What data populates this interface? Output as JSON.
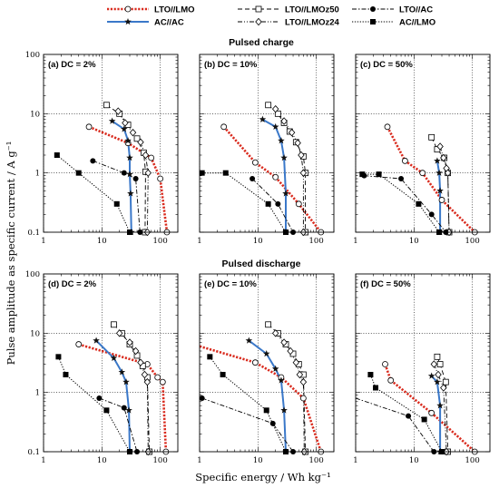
{
  "colors": {
    "LTO//LMO": "#d92b1e",
    "AC//AC": "#3a78c9",
    "black": "#000000"
  },
  "shared": {
    "xlabel": "Specific energy / Wh kg⁻¹",
    "ylabel": "Pulse amplitude as specific current / A g⁻¹",
    "x_ticks": [
      "1",
      "10",
      "100"
    ],
    "y_ticks": [
      "0.1",
      "1",
      "10",
      "100"
    ],
    "row_titles": [
      "Pulsed charge",
      "Pulsed discharge"
    ]
  },
  "legend": [
    {
      "label": "LTO//LMO",
      "line": "dotted-thick",
      "marker": "circle-open",
      "color": "#d92b1e"
    },
    {
      "label": "LTO//LMOz50",
      "line": "dashed",
      "marker": "square-open",
      "color": "#000000"
    },
    {
      "label": "LTO//AC",
      "line": "dashdot",
      "marker": "circle-filled",
      "color": "#000000"
    },
    {
      "label": "AC//AC",
      "line": "solid",
      "marker": "star",
      "color": "#3a78c9"
    },
    {
      "label": "LTO//LMOz24",
      "line": "dashdotdot",
      "marker": "diamond-open",
      "color": "#000000"
    },
    {
      "label": "AC//LMO",
      "line": "dotted",
      "marker": "square-filled",
      "color": "#000000"
    }
  ],
  "chart_data": [
    {
      "type": "line",
      "label": "(a) DC = 2%",
      "xscale": "log",
      "yscale": "log",
      "xlim": [
        1,
        200
      ],
      "ylim": [
        0.1,
        100
      ],
      "series": [
        {
          "name": "LTO//LMO",
          "points": [
            [
              6,
              6
            ],
            [
              28,
              3.2
            ],
            [
              70,
              1.8
            ],
            [
              100,
              0.8
            ],
            [
              130,
              0.1
            ]
          ]
        },
        {
          "name": "LTO//LMOz50",
          "points": [
            [
              12,
              14
            ],
            [
              20,
              10
            ],
            [
              28,
              6.5
            ],
            [
              40,
              3.8
            ],
            [
              52,
              2.2
            ],
            [
              56,
              1.05
            ],
            [
              55,
              0.1
            ]
          ]
        },
        {
          "name": "LTO//LMOz24",
          "points": [
            [
              19,
              11
            ],
            [
              25,
              7
            ],
            [
              34,
              4.8
            ],
            [
              46,
              3.3
            ],
            [
              56,
              2
            ],
            [
              62,
              1
            ],
            [
              60,
              0.1
            ]
          ]
        },
        {
          "name": "AC//AC",
          "points": [
            [
              15,
              7.5
            ],
            [
              24,
              5.5
            ],
            [
              28,
              3.5
            ],
            [
              30,
              1.8
            ],
            [
              30,
              0.95
            ],
            [
              31,
              0.45
            ],
            [
              32,
              0.1
            ]
          ]
        },
        {
          "name": "LTO//AC",
          "points": [
            [
              7,
              1.6
            ],
            [
              24,
              1
            ],
            [
              38,
              0.8
            ],
            [
              45,
              0.1
            ]
          ]
        },
        {
          "name": "AC//LMO",
          "points": [
            [
              1.7,
              2
            ],
            [
              4,
              1
            ],
            [
              18,
              0.3
            ],
            [
              30,
              0.1
            ]
          ]
        }
      ]
    },
    {
      "type": "line",
      "label": "(b) DC = 10%",
      "xscale": "log",
      "yscale": "log",
      "xlim": [
        1,
        200
      ],
      "ylim": [
        0.1,
        100
      ],
      "series": [
        {
          "name": "LTO//LMO",
          "points": [
            [
              2.6,
              6
            ],
            [
              9,
              1.5
            ],
            [
              20,
              0.85
            ],
            [
              50,
              0.3
            ],
            [
              120,
              0.1
            ]
          ]
        },
        {
          "name": "LTO//LMOz50",
          "points": [
            [
              15,
              14
            ],
            [
              22,
              10
            ],
            [
              28,
              7
            ],
            [
              35,
              5
            ],
            [
              45,
              3.3
            ],
            [
              60,
              1.9
            ],
            [
              65,
              1
            ],
            [
              65,
              0.1
            ]
          ]
        },
        {
          "name": "LTO//LMOz24",
          "points": [
            [
              20,
              12
            ],
            [
              28,
              7.5
            ],
            [
              38,
              4.8
            ],
            [
              48,
              3.2
            ],
            [
              55,
              2
            ],
            [
              60,
              1
            ],
            [
              60,
              0.1
            ]
          ]
        },
        {
          "name": "AC//AC",
          "points": [
            [
              12,
              8
            ],
            [
              20,
              6
            ],
            [
              25,
              3.5
            ],
            [
              28,
              1.8
            ],
            [
              30,
              0.45
            ],
            [
              30,
              0.1
            ]
          ]
        },
        {
          "name": "LTO//AC",
          "points": [
            [
              8,
              0.8
            ],
            [
              22,
              0.3
            ],
            [
              40,
              0.1
            ]
          ]
        },
        {
          "name": "AC//LMO",
          "points": [
            [
              1.1,
              1
            ],
            [
              2.8,
              1
            ],
            [
              15,
              0.3
            ],
            [
              30,
              0.1
            ]
          ]
        }
      ]
    },
    {
      "type": "line",
      "label": "(c) DC = 50%",
      "xscale": "log",
      "yscale": "log",
      "xlim": [
        1,
        200
      ],
      "ylim": [
        0.1,
        100
      ],
      "series": [
        {
          "name": "LTO//LMO",
          "points": [
            [
              3.5,
              6
            ],
            [
              7,
              1.6
            ],
            [
              14,
              1
            ],
            [
              30,
              0.35
            ],
            [
              110,
              0.1
            ]
          ]
        },
        {
          "name": "LTO//LMOz50",
          "points": [
            [
              20,
              4
            ],
            [
              25,
              2.5
            ],
            [
              33,
              1.8
            ],
            [
              38,
              1
            ],
            [
              40,
              0.1
            ]
          ]
        },
        {
          "name": "LTO//LMOz24",
          "points": [
            [
              28,
              2.8
            ],
            [
              32,
              1.8
            ],
            [
              36,
              1.2
            ],
            [
              38,
              1
            ],
            [
              40,
              0.1
            ]
          ]
        },
        {
          "name": "AC//AC",
          "points": [
            [
              25,
              1.6
            ],
            [
              27,
              1
            ],
            [
              28,
              0.5
            ],
            [
              28,
              0.1
            ]
          ]
        },
        {
          "name": "LTO//AC",
          "points": [
            [
              1.4,
              0.9
            ],
            [
              6,
              0.8
            ],
            [
              20,
              0.2
            ],
            [
              35,
              0.1
            ]
          ]
        },
        {
          "name": "AC//LMO",
          "points": [
            [
              1.3,
              0.95
            ],
            [
              2.5,
              0.95
            ],
            [
              12,
              0.3
            ],
            [
              27,
              0.1
            ]
          ]
        }
      ]
    },
    {
      "type": "line",
      "label": "(d) DC = 2%",
      "xscale": "log",
      "yscale": "log",
      "xlim": [
        1,
        200
      ],
      "ylim": [
        0.1,
        100
      ],
      "series": [
        {
          "name": "LTO//LMO",
          "points": [
            [
              4,
              6.5
            ],
            [
              60,
              3
            ],
            [
              90,
              1.8
            ],
            [
              110,
              1.5
            ],
            [
              125,
              0.1
            ]
          ]
        },
        {
          "name": "LTO//LMOz50",
          "points": [
            [
              16,
              14
            ],
            [
              22,
              10
            ],
            [
              30,
              6.5
            ],
            [
              40,
              4.2
            ],
            [
              50,
              2.8
            ],
            [
              60,
              1.8
            ],
            [
              65,
              0.1
            ]
          ]
        },
        {
          "name": "LTO//LMOz24",
          "points": [
            [
              20,
              10
            ],
            [
              30,
              7
            ],
            [
              38,
              5
            ],
            [
              46,
              3.2
            ],
            [
              54,
              2
            ],
            [
              60,
              1.5
            ],
            [
              62,
              0.1
            ]
          ]
        },
        {
          "name": "AC//AC",
          "points": [
            [
              8,
              7.5
            ],
            [
              16,
              3.8
            ],
            [
              22,
              2.2
            ],
            [
              26,
              1.5
            ],
            [
              29,
              0.5
            ],
            [
              30,
              0.1
            ]
          ]
        },
        {
          "name": "LTO//AC",
          "points": [
            [
              9,
              0.8
            ],
            [
              24,
              0.55
            ],
            [
              40,
              0.1
            ]
          ]
        },
        {
          "name": "AC//LMO",
          "points": [
            [
              1.8,
              4
            ],
            [
              2.4,
              2
            ],
            [
              12,
              0.5
            ],
            [
              30,
              0.1
            ]
          ]
        }
      ]
    },
    {
      "type": "line",
      "label": "(e) DC = 10%",
      "xscale": "log",
      "yscale": "log",
      "xlim": [
        1,
        200
      ],
      "ylim": [
        0.1,
        100
      ],
      "series": [
        {
          "name": "LTO//LMO",
          "points": [
            [
              1,
              6
            ],
            [
              9,
              3.2
            ],
            [
              25,
              1.8
            ],
            [
              60,
              0.8
            ],
            [
              120,
              0.1
            ]
          ]
        },
        {
          "name": "LTO//LMOz50",
          "points": [
            [
              15,
              14
            ],
            [
              22,
              10
            ],
            [
              30,
              6.5
            ],
            [
              40,
              4.5
            ],
            [
              50,
              3
            ],
            [
              60,
              2
            ],
            [
              65,
              0.1
            ]
          ]
        },
        {
          "name": "LTO//LMOz24",
          "points": [
            [
              20,
              10
            ],
            [
              28,
              7
            ],
            [
              36,
              5
            ],
            [
              45,
              3.2
            ],
            [
              52,
              2
            ],
            [
              60,
              1.5
            ],
            [
              62,
              0.1
            ]
          ]
        },
        {
          "name": "AC//AC",
          "points": [
            [
              7,
              7.5
            ],
            [
              14,
              4.5
            ],
            [
              20,
              2.5
            ],
            [
              25,
              1.6
            ],
            [
              28,
              0.5
            ],
            [
              30,
              0.1
            ]
          ]
        },
        {
          "name": "LTO//AC",
          "points": [
            [
              1.1,
              0.8
            ],
            [
              18,
              0.3
            ],
            [
              40,
              0.1
            ]
          ]
        },
        {
          "name": "AC//LMO",
          "points": [
            [
              1.5,
              4
            ],
            [
              2.5,
              2
            ],
            [
              14,
              0.5
            ],
            [
              30,
              0.1
            ]
          ]
        }
      ]
    },
    {
      "type": "line",
      "label": "(f) DC = 50%",
      "xscale": "log",
      "yscale": "log",
      "xlim": [
        1,
        200
      ],
      "ylim": [
        0.1,
        100
      ],
      "series": [
        {
          "name": "LTO//LMO",
          "points": [
            [
              3.2,
              3
            ],
            [
              4,
              1.6
            ],
            [
              20,
              0.45
            ],
            [
              110,
              0.1
            ]
          ]
        },
        {
          "name": "LTO//LMOz50",
          "points": [
            [
              25,
              4
            ],
            [
              28,
              3
            ],
            [
              35,
              1.5
            ],
            [
              38,
              0.1
            ]
          ]
        },
        {
          "name": "LTO//LMOz24",
          "points": [
            [
              22,
              3
            ],
            [
              26,
              2
            ],
            [
              32,
              1.2
            ],
            [
              36,
              0.1
            ]
          ]
        },
        {
          "name": "AC//AC",
          "points": [
            [
              20,
              1.9
            ],
            [
              25,
              1.5
            ],
            [
              28,
              0.6
            ],
            [
              28,
              0.1
            ]
          ]
        },
        {
          "name": "LTO//AC",
          "points": [
            [
              1,
              0.8
            ],
            [
              8,
              0.4
            ],
            [
              22,
              0.1
            ]
          ]
        },
        {
          "name": "AC//LMO",
          "points": [
            [
              1.8,
              2
            ],
            [
              2.2,
              1.2
            ],
            [
              15,
              0.35
            ],
            [
              30,
              0.1
            ]
          ]
        }
      ]
    }
  ]
}
